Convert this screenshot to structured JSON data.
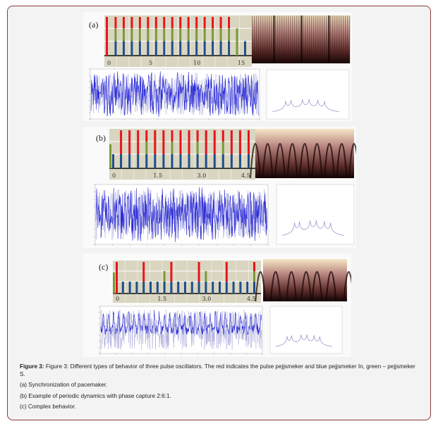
{
  "figure": {
    "panels": [
      {
        "label": "(a)",
        "ticks": [
          "0",
          "5",
          "10",
          "15"
        ],
        "first_pulse": "red",
        "pulses": [
          "RGB",
          "RGB",
          "RGB",
          "RGB",
          "RGB",
          "RGB",
          "RGB",
          "RGB",
          "RGB",
          "RGB",
          "RGB",
          "RGB",
          "RGB",
          "RGB",
          "RGB",
          "G",
          "B"
        ],
        "heatmap_style": "dense-stripes"
      },
      {
        "label": "(b)",
        "ticks": [
          "0",
          "1.5",
          "3.0",
          "4.5"
        ],
        "first_pulse": "green",
        "pulses": [
          "RB",
          "RB",
          "RB",
          "RGB",
          "RB",
          "RB",
          "RGB",
          "RB",
          "RB",
          "RGB",
          "RB",
          "RB",
          "RGB",
          "RB",
          "RB",
          "RB"
        ],
        "heatmap_style": "arches"
      },
      {
        "label": "(c)",
        "ticks": [
          "0",
          "1.5",
          "3.0",
          "4.5"
        ],
        "first_pulse": "red-green",
        "pulses": [
          "B",
          "B",
          "B",
          "RB",
          "B",
          "B",
          "GB",
          "RB",
          "B",
          "B",
          "B",
          "RB",
          "GB",
          "B",
          "B",
          "RB",
          "B",
          "B",
          "B",
          "RGB"
        ],
        "heatmap_style": "irregular-arches"
      }
    ],
    "colors": {
      "red": "#e8141c",
      "green": "#7a9a3a",
      "blue": "#1f4e8c",
      "chart_bg": "#d9d5c0",
      "signal": "#2a2ad8",
      "spectrum": "#9a9ad0",
      "border": "#8a3b3b"
    }
  },
  "caption": {
    "title": "Figure 3:",
    "text": " Figure 3:  Different types of behavior of three pulse oscillators. The red indicates the pulse pejjsmeker and blue pejjsmeker In, green – pejjsmeker S.",
    "items": [
      "(a) Synchronization of pacemaker.",
      "(b) Example of periodic dynamics with phase capture 2:6:1.",
      "(c) Complex behavior."
    ]
  }
}
